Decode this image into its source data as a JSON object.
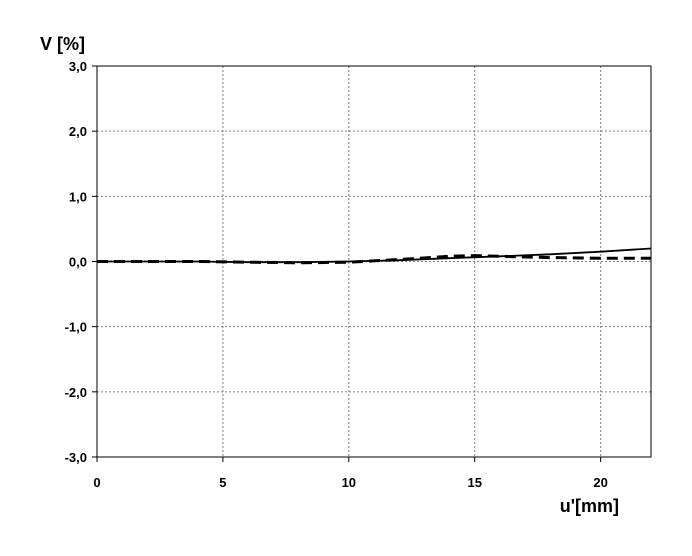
{
  "chart_data": {
    "type": "line",
    "ylabel": "V [%]",
    "xlabel": "u'[mm]",
    "xlim": [
      0,
      22
    ],
    "ylim": [
      -3,
      3
    ],
    "x_ticks": [
      0,
      5,
      10,
      15,
      20
    ],
    "x_tick_labels": [
      "0",
      "5",
      "10",
      "15",
      "20"
    ],
    "y_ticks": [
      3,
      2,
      1,
      0,
      -1,
      -2,
      -3
    ],
    "y_tick_labels": [
      "3,0",
      "2,0",
      "1,0",
      "0,0",
      "-1,0",
      "-2,0",
      "-3,0"
    ],
    "grid": true,
    "series": [
      {
        "style": "solid",
        "color": "#000000",
        "x": [
          0,
          2,
          4,
          6,
          8,
          10,
          12,
          14,
          16,
          18,
          20,
          22
        ],
        "y": [
          0.0,
          0.0,
          0.0,
          -0.01,
          -0.01,
          0.0,
          0.02,
          0.05,
          0.08,
          0.11,
          0.15,
          0.2
        ]
      },
      {
        "style": "dashed",
        "color": "#000000",
        "x": [
          0,
          2,
          4,
          6,
          8,
          10,
          12,
          14,
          15,
          16,
          18,
          20,
          22
        ],
        "y": [
          0.0,
          0.0,
          0.0,
          -0.01,
          -0.02,
          -0.01,
          0.03,
          0.08,
          0.09,
          0.08,
          0.06,
          0.05,
          0.05
        ]
      }
    ]
  }
}
